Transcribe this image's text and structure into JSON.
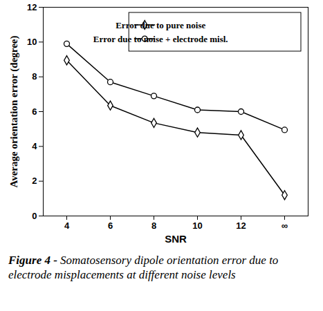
{
  "chart_data": {
    "type": "line",
    "caption": "Figure 4 - Somatosensory dipole orientation error due to electrode misplacements at different noise levels",
    "x_label": "SNR",
    "y_label": "Average orientation error (degree)",
    "categories": [
      "4",
      "6",
      "8",
      "10",
      "12",
      "∞"
    ],
    "series": [
      {
        "name": "Error due to pure noise",
        "color": "#000000",
        "marker": "diamond",
        "values": [
          8.95,
          6.35,
          5.35,
          4.8,
          4.65,
          1.2
        ]
      },
      {
        "name": "Error due to noise + electrode misl.",
        "color": "#000000",
        "marker": "circle",
        "values": [
          9.9,
          7.7,
          6.9,
          6.1,
          6.0,
          4.95
        ]
      }
    ],
    "ylim": [
      0,
      12
    ],
    "yticks": [
      0,
      2,
      4,
      6,
      8,
      10,
      12
    ],
    "legend": "top-right"
  }
}
